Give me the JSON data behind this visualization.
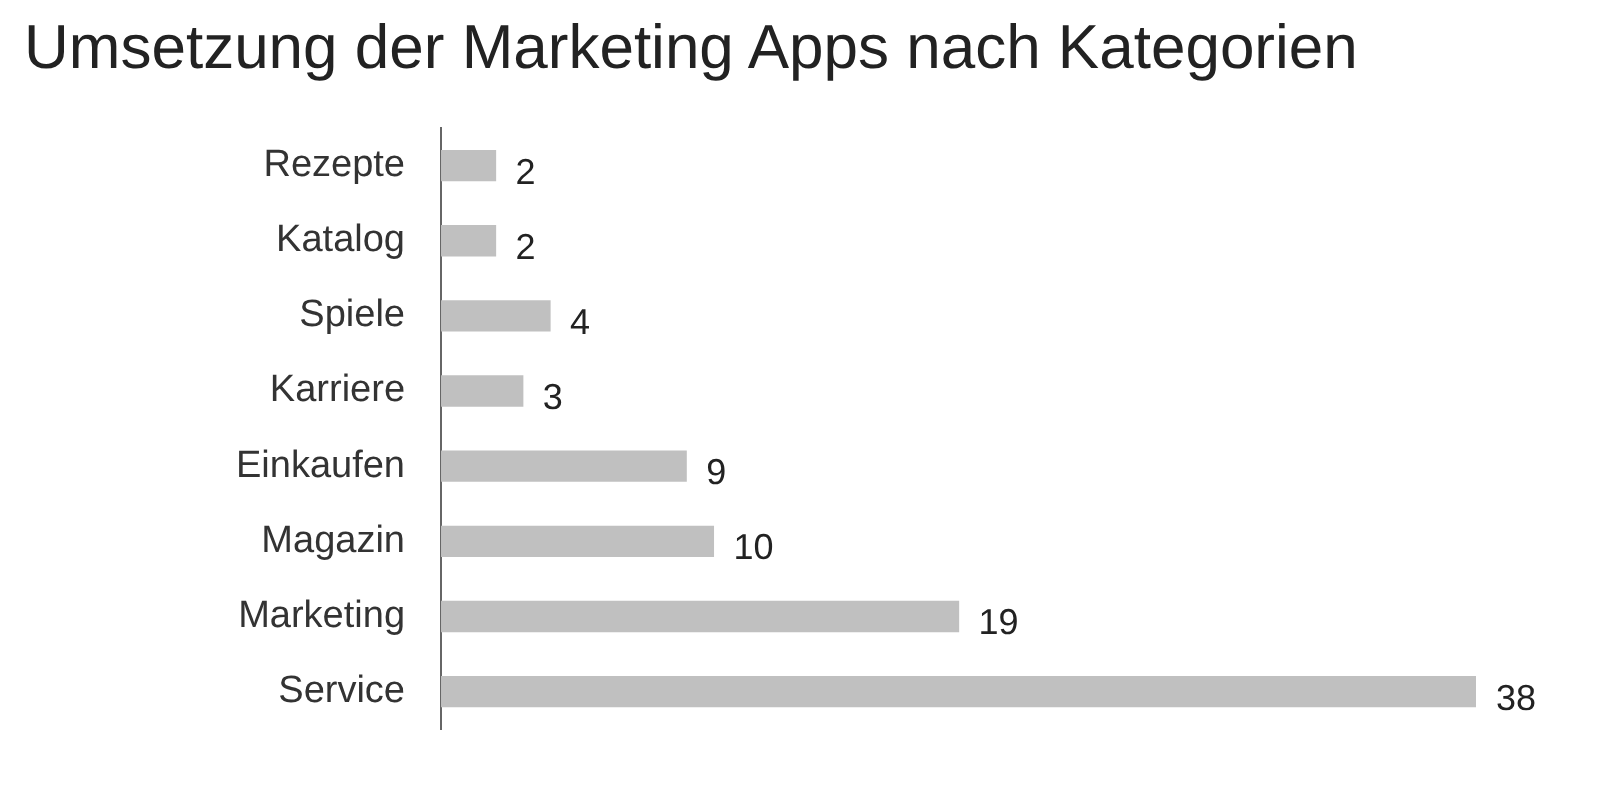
{
  "chart_data": {
    "type": "bar",
    "orientation": "horizontal",
    "title": "Umsetzung der Marketing Apps nach Kategorien",
    "categories": [
      "Rezepte",
      "Katalog",
      "Spiele",
      "Karriere",
      "Einkaufen",
      "Magazin",
      "Marketing",
      "Service"
    ],
    "values": [
      2,
      2,
      4,
      3,
      9,
      10,
      19,
      38
    ],
    "color": "#c0c0c0",
    "data_labels": true,
    "legend": false
  }
}
